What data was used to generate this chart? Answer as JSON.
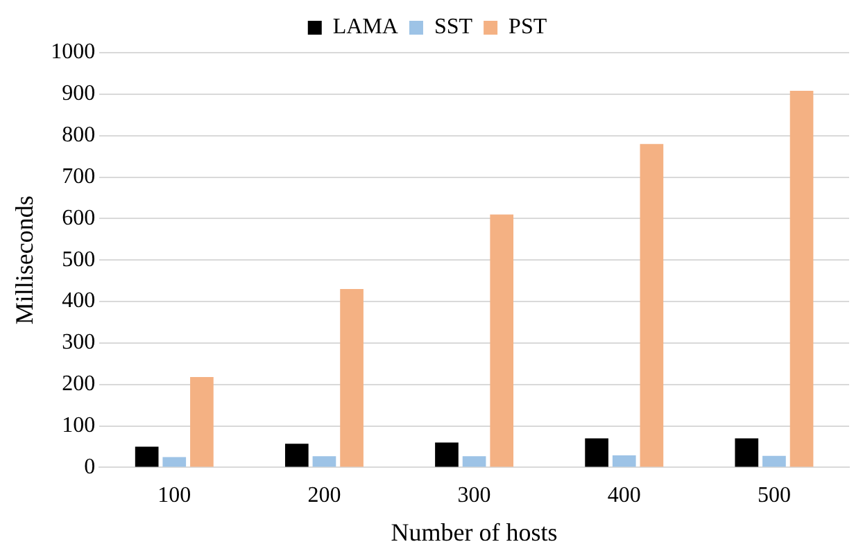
{
  "chart_data": {
    "type": "bar",
    "xlabel": "Number of hosts",
    "ylabel": "Milliseconds",
    "categories": [
      "100",
      "200",
      "300",
      "400",
      "500"
    ],
    "series": [
      {
        "name": "LAMA",
        "color": "#000000",
        "values": [
          50,
          57,
          60,
          70,
          70
        ]
      },
      {
        "name": "SST",
        "color": "#9dc3e6",
        "values": [
          25,
          27,
          27,
          29,
          28
        ]
      },
      {
        "name": "PST",
        "color": "#f4b183",
        "values": [
          218,
          430,
          610,
          780,
          908
        ]
      }
    ],
    "ylim": [
      0,
      1000
    ],
    "yticks": [
      0,
      100,
      200,
      300,
      400,
      500,
      600,
      700,
      800,
      900,
      1000
    ],
    "grid": "y",
    "legend": "top"
  }
}
